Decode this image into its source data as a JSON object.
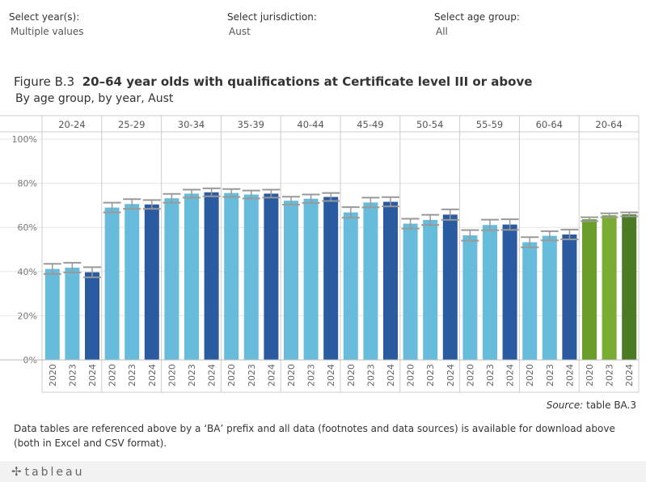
{
  "filters": [
    {
      "label": "Select year(s):",
      "value": "Multiple values"
    },
    {
      "label": "Select jurisdiction:",
      "value": "Aust"
    },
    {
      "label": "Select age group:",
      "value": "All"
    }
  ],
  "title_prefix": "Figure B.3",
  "title_main": "20–64 year olds with qualifications at Certificate level III  or above",
  "subtitle": "By age group, by year, Aust",
  "source_prefix": "Source:",
  "source_text": " table BA.3",
  "note": "Data tables are referenced above by a ‘BA’ prefix and all data (footnotes and data sources) is available for download above (both in Excel and CSV format).",
  "logo": "tableau",
  "colors": {
    "bar_2020": "#67bcdb",
    "bar_2023": "#67bcdb",
    "bar_2024": "#2a5aa0",
    "total_2020": "#6a9e2a",
    "total_2023": "#7aab33",
    "total_2024": "#4a7a22",
    "error_bar": "#999999",
    "grid": "#cccccc"
  },
  "chart_data": {
    "type": "bar",
    "panels": [
      "20-24",
      "25-29",
      "30-34",
      "35-39",
      "40-44",
      "45-49",
      "50-54",
      "55-59",
      "60-64",
      "20-64"
    ],
    "years": [
      "2020",
      "2023",
      "2024"
    ],
    "yticks": [
      "0%",
      "20%",
      "40%",
      "60%",
      "80%",
      "100%"
    ],
    "ylim": [
      0,
      100
    ],
    "values": [
      [
        41.2,
        41.8,
        39.7
      ],
      [
        69.0,
        70.6,
        70.4
      ],
      [
        73.2,
        75.3,
        75.9
      ],
      [
        75.6,
        74.9,
        75.3
      ],
      [
        72.1,
        73.0,
        73.8
      ],
      [
        66.8,
        71.3,
        71.6
      ],
      [
        61.7,
        63.4,
        65.8
      ],
      [
        56.4,
        61.1,
        61.3
      ],
      [
        53.3,
        56.2,
        56.8
      ],
      [
        63.7,
        65.5,
        65.9
      ]
    ],
    "error_margins": [
      [
        2.3,
        2.2,
        2.3
      ],
      [
        2.2,
        2.2,
        2.0
      ],
      [
        2.0,
        1.8,
        1.8
      ],
      [
        1.8,
        1.8,
        1.8
      ],
      [
        1.8,
        1.9,
        1.8
      ],
      [
        2.4,
        2.2,
        2.1
      ],
      [
        2.2,
        2.3,
        2.4
      ],
      [
        2.4,
        2.4,
        2.4
      ],
      [
        2.3,
        2.1,
        2.2
      ],
      [
        0.9,
        0.9,
        0.9
      ]
    ]
  }
}
